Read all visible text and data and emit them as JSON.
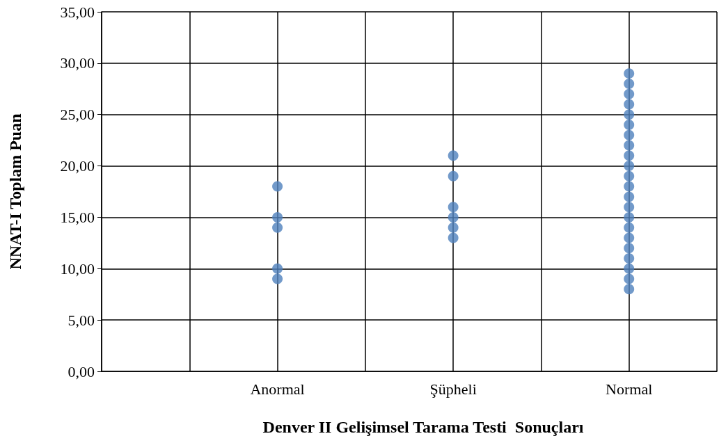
{
  "chart_data": {
    "type": "scatter",
    "xlabel": "Denver II Gelişimsel Tarama Testi  Sonuçları",
    "ylabel": "NNAT-I Toplam Puan",
    "categories": [
      null,
      null,
      "Anormal",
      null,
      "Şüpheli",
      null,
      "Normal",
      null
    ],
    "series": [
      {
        "color": "#4f81bd",
        "x": [
          "Anormal",
          "Anormal",
          "Anormal",
          "Anormal",
          "Anormal",
          "Şüpheli",
          "Şüpheli",
          "Şüpheli",
          "Şüpheli",
          "Şüpheli",
          "Şüpheli",
          "Normal",
          "Normal",
          "Normal",
          "Normal",
          "Normal",
          "Normal",
          "Normal",
          "Normal",
          "Normal",
          "Normal",
          "Normal",
          "Normal",
          "Normal",
          "Normal",
          "Normal",
          "Normal",
          "Normal",
          "Normal",
          "Normal",
          "Normal",
          "Normal",
          "Normal"
        ],
        "values": [
          18,
          15,
          14,
          10,
          9,
          21,
          19,
          16,
          15,
          14,
          13,
          29,
          28,
          27,
          26,
          25,
          24,
          23,
          22,
          21,
          20,
          19,
          18,
          17,
          16,
          15,
          14,
          13,
          12,
          11,
          10,
          9,
          8
        ]
      }
    ],
    "ylim": [
      0,
      35
    ],
    "yticks": [
      {
        "value": 0,
        "label": "0,00"
      },
      {
        "value": 5,
        "label": "5,00"
      },
      {
        "value": 10,
        "label": "10,00"
      },
      {
        "value": 15,
        "label": "15,00"
      },
      {
        "value": 20,
        "label": "20,00"
      },
      {
        "value": 25,
        "label": "25,00"
      },
      {
        "value": 30,
        "label": "30,00"
      },
      {
        "value": 35,
        "label": "35,00"
      }
    ],
    "grid": true,
    "marker": "circle"
  }
}
